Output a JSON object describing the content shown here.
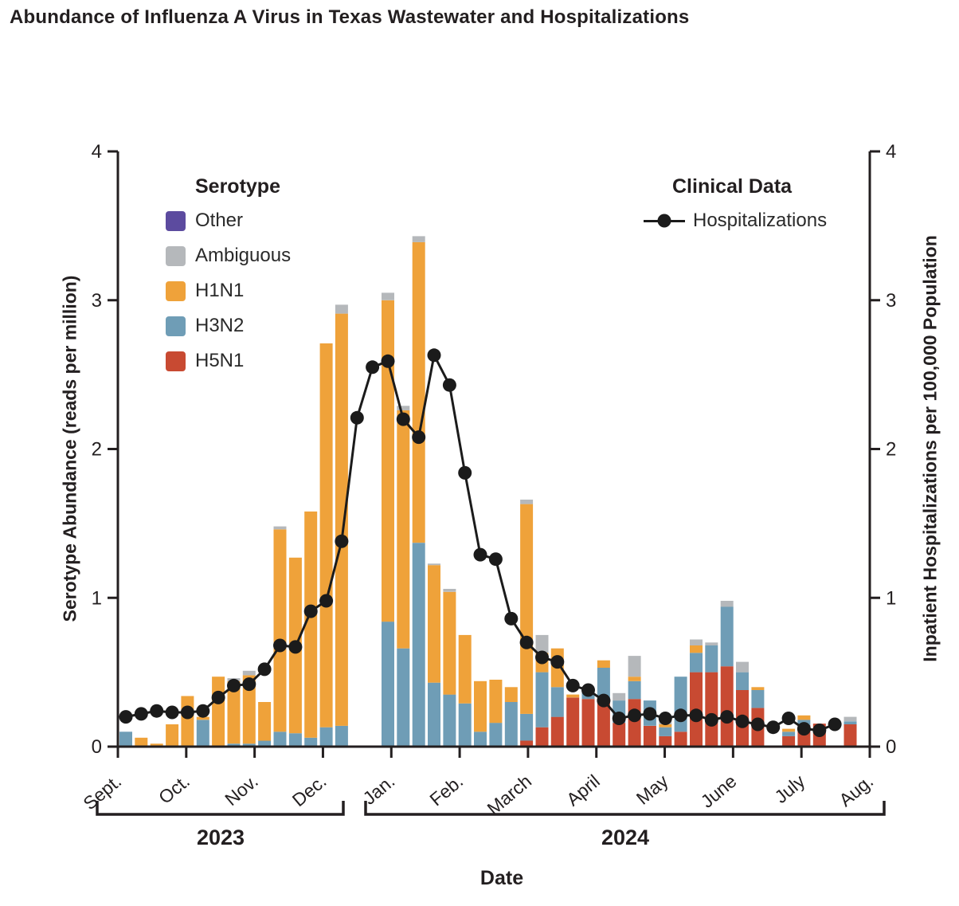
{
  "title": "Abundance of Influenza A Virus in Texas Wastewater and Hospitalizations",
  "chart_data": {
    "type": "stacked-bar+line",
    "title": "Abundance of Influenza A Virus in Texas Wastewater and Hospitalizations",
    "xlabel": "Date",
    "y_left": {
      "label": "Serotype Abundance (reads per million)",
      "ticks": [
        0,
        1,
        2,
        3,
        4
      ],
      "range": [
        0,
        4
      ]
    },
    "y_right": {
      "label": "Inpatient Hospitalizations per 100,000 Population",
      "ticks": [
        0,
        1,
        2,
        3,
        4
      ],
      "range": [
        0,
        4
      ]
    },
    "x": {
      "label": "Date",
      "month_ticks": [
        "Sept.",
        "Oct.",
        "Nov.",
        "Dec.",
        "Jan.",
        "Feb.",
        "March",
        "April",
        "May",
        "June",
        "July",
        "Aug."
      ],
      "year_brackets": [
        {
          "label": "2023",
          "months": "Sept.-Dec. 2023"
        },
        {
          "label": "2024",
          "months": "Jan.-Aug. 2024"
        }
      ]
    },
    "legend": {
      "serotype_title": "Serotype",
      "clinical_title": "Clinical Data",
      "line_label": "Hospitalizations",
      "serotypes": [
        {
          "label": "Other",
          "color": "#5c4b9f"
        },
        {
          "label": "Ambiguous",
          "color": "#b5b8bb"
        },
        {
          "label": "H1N1",
          "color": "#efa23a"
        },
        {
          "label": "H3N2",
          "color": "#6f9db6"
        },
        {
          "label": "H5N1",
          "color": "#c84a32"
        }
      ],
      "line_color": "#1b1b1b",
      "legend_position": "top-inside"
    },
    "grid": false,
    "stack_order_bottom_to_top": [
      "H5N1",
      "H3N2",
      "H1N1",
      "Ambiguous",
      "Other"
    ],
    "weeks_note": "48 weekly columns, Sept. 2023 - Aug. 2024; null = no wastewater sample that week",
    "bars_reads_per_million": [
      [
        0,
        0.1,
        0,
        0,
        0
      ],
      [
        0,
        0,
        0.06,
        0,
        0
      ],
      [
        0,
        0,
        0.02,
        0,
        0
      ],
      [
        0,
        0,
        0.15,
        0,
        0
      ],
      [
        0,
        0,
        0.34,
        0,
        0
      ],
      [
        0,
        0.18,
        0.02,
        0,
        0
      ],
      [
        0,
        0,
        0.47,
        0,
        0
      ],
      [
        0,
        0.02,
        0.42,
        0.02,
        0
      ],
      [
        0,
        0.02,
        0.46,
        0.03,
        0
      ],
      [
        0,
        0.04,
        0.26,
        0,
        0
      ],
      [
        0,
        0.1,
        1.36,
        0.02,
        0
      ],
      [
        0,
        0.09,
        1.18,
        0,
        0
      ],
      [
        0,
        0.06,
        1.52,
        0,
        0
      ],
      [
        0,
        0.13,
        2.58,
        0,
        0
      ],
      [
        0,
        0.14,
        2.77,
        0.06,
        0
      ],
      null,
      null,
      [
        0,
        0.84,
        2.16,
        0.05,
        0
      ],
      [
        0,
        0.66,
        1.6,
        0.03,
        0
      ],
      [
        0,
        1.37,
        2.02,
        0.04,
        0
      ],
      [
        0,
        0.43,
        0.79,
        0.01,
        0
      ],
      [
        0,
        0.35,
        0.69,
        0.02,
        0
      ],
      [
        0,
        0.29,
        0.46,
        0,
        0
      ],
      [
        0,
        0.1,
        0.34,
        0,
        0
      ],
      [
        0,
        0.16,
        0.29,
        0,
        0
      ],
      [
        0,
        0.3,
        0.1,
        0,
        0
      ],
      [
        0.04,
        0.18,
        1.41,
        0.03,
        0
      ],
      [
        0.13,
        0.37,
        0.13,
        0.12,
        0
      ],
      [
        0.2,
        0.2,
        0.26,
        0,
        0
      ],
      [
        0.33,
        0,
        0.02,
        0,
        0
      ],
      [
        0.32,
        0.05,
        0.02,
        0,
        0
      ],
      [
        0.32,
        0.21,
        0.05,
        0,
        0
      ],
      [
        0.16,
        0.15,
        0,
        0.05,
        0
      ],
      [
        0.32,
        0.12,
        0.03,
        0.14,
        0
      ],
      [
        0.14,
        0.17,
        0,
        0,
        0
      ],
      [
        0.07,
        0.06,
        0.02,
        0.02,
        0
      ],
      [
        0.1,
        0.37,
        0,
        0,
        0
      ],
      [
        0.5,
        0.13,
        0.05,
        0.04,
        0
      ],
      [
        0.5,
        0.18,
        0,
        0.02,
        0
      ],
      [
        0.54,
        0.4,
        0,
        0.04,
        0
      ],
      [
        0.38,
        0.12,
        0,
        0.07,
        0
      ],
      [
        0.26,
        0.12,
        0.02,
        0,
        0
      ],
      null,
      [
        0.07,
        0.03,
        0.02,
        0,
        0
      ],
      [
        0.145,
        0.035,
        0.03,
        0,
        0
      ],
      [
        0.155,
        0,
        0,
        0,
        0
      ],
      null,
      [
        0.15,
        0.02,
        0,
        0.03,
        0
      ]
    ],
    "hospitalizations_per_100k": [
      0.2,
      0.22,
      0.24,
      0.23,
      0.23,
      0.24,
      0.33,
      0.41,
      0.42,
      0.52,
      0.68,
      0.67,
      0.91,
      0.98,
      1.38,
      2.21,
      2.55,
      2.59,
      2.2,
      2.08,
      2.63,
      2.43,
      1.84,
      1.29,
      1.26,
      0.86,
      0.7,
      0.6,
      0.57,
      0.41,
      0.38,
      0.31,
      0.19,
      0.21,
      0.22,
      0.19,
      0.21,
      0.21,
      0.18,
      0.2,
      0.17,
      0.15,
      0.13,
      0.19,
      0.12,
      0.11,
      0.15,
      null
    ]
  }
}
